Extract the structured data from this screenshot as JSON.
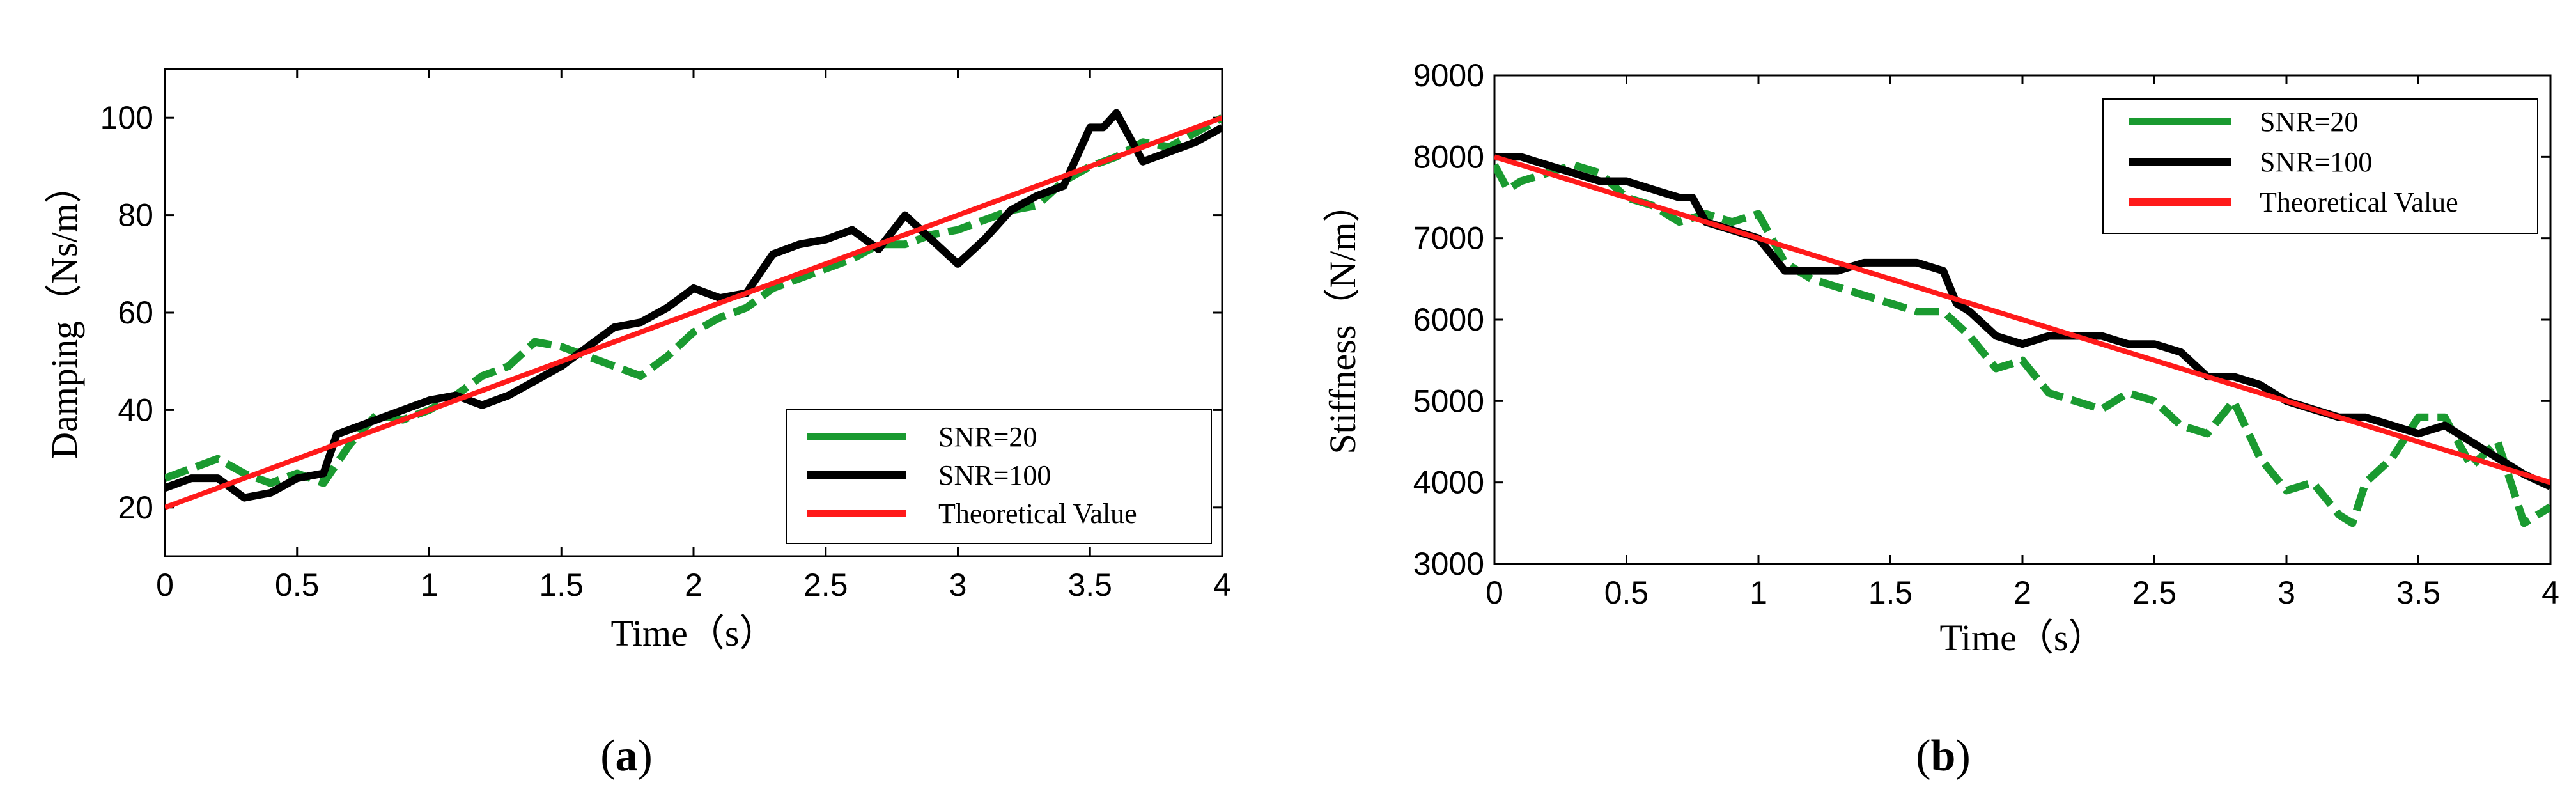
{
  "chart_data": [
    {
      "type": "line",
      "panel_label": "a",
      "title": "",
      "xlabel": "Time（s）",
      "ylabel": "Damping（Ns/m）",
      "xlim": [
        0,
        4
      ],
      "ylim": [
        10,
        110
      ],
      "xticks": [
        0,
        0.5,
        1,
        1.5,
        2,
        2.5,
        3,
        3.5,
        4
      ],
      "xtick_labels": [
        "0",
        "0.5",
        "1",
        "1.5",
        "2",
        "2.5",
        "3",
        "3.5",
        "4"
      ],
      "yticks": [
        20,
        40,
        60,
        80,
        100
      ],
      "ytick_labels": [
        "20",
        "40",
        "60",
        "80",
        "100"
      ],
      "grid": false,
      "legend_position": "bottom-right",
      "series": [
        {
          "name": "SNR=20",
          "color": "#1a9a30",
          "style": "dashed",
          "x": [
            0,
            0.1,
            0.2,
            0.3,
            0.4,
            0.5,
            0.6,
            0.7,
            0.8,
            0.9,
            1.0,
            1.1,
            1.2,
            1.3,
            1.4,
            1.5,
            1.6,
            1.7,
            1.8,
            1.9,
            2.0,
            2.1,
            2.2,
            2.3,
            2.4,
            2.5,
            2.6,
            2.7,
            2.8,
            2.9,
            3.0,
            3.1,
            3.2,
            3.3,
            3.4,
            3.5,
            3.6,
            3.7,
            3.8,
            3.9,
            4.0
          ],
          "y": [
            26,
            28,
            30,
            27,
            25,
            27,
            25,
            33,
            39,
            38,
            40,
            43,
            47,
            49,
            54,
            53,
            51,
            49,
            47,
            51,
            56,
            59,
            61,
            65,
            67,
            69,
            71,
            74,
            74,
            76,
            77,
            79,
            81,
            82,
            87,
            90,
            92,
            95,
            94,
            97,
            100
          ]
        },
        {
          "name": "SNR=100",
          "color": "#000000",
          "style": "solid",
          "x": [
            0,
            0.1,
            0.2,
            0.3,
            0.4,
            0.5,
            0.6,
            0.65,
            0.7,
            0.8,
            0.9,
            1.0,
            1.1,
            1.2,
            1.3,
            1.4,
            1.5,
            1.6,
            1.7,
            1.8,
            1.9,
            2.0,
            2.1,
            2.2,
            2.3,
            2.4,
            2.5,
            2.6,
            2.7,
            2.8,
            2.9,
            3.0,
            3.1,
            3.2,
            3.3,
            3.4,
            3.5,
            3.55,
            3.6,
            3.65,
            3.7,
            3.8,
            3.9,
            4.0
          ],
          "y": [
            24,
            26,
            26,
            22,
            23,
            26,
            27,
            35,
            36,
            38,
            40,
            42,
            43,
            41,
            43,
            46,
            49,
            53,
            57,
            58,
            61,
            65,
            63,
            64,
            72,
            74,
            75,
            77,
            73,
            80,
            75,
            70,
            75,
            81,
            84,
            86,
            98,
            98,
            101,
            96,
            91,
            93,
            95,
            98
          ]
        },
        {
          "name": "Theoretical Value",
          "color": "#ff1a1a",
          "style": "solid",
          "x": [
            0,
            4
          ],
          "y": [
            20,
            100
          ]
        }
      ]
    },
    {
      "type": "line",
      "panel_label": "b",
      "title": "",
      "xlabel": "Time（s）",
      "ylabel": "Stiffness（N/m）",
      "xlim": [
        0,
        4
      ],
      "ylim": [
        3000,
        9000
      ],
      "xticks": [
        0,
        0.5,
        1,
        1.5,
        2,
        2.5,
        3,
        3.5,
        4
      ],
      "xtick_labels": [
        "0",
        "0.5",
        "1",
        "1.5",
        "2",
        "2.5",
        "3",
        "3.5",
        "4"
      ],
      "yticks": [
        3000,
        4000,
        5000,
        6000,
        7000,
        8000,
        9000
      ],
      "ytick_labels": [
        "3000",
        "4000",
        "5000",
        "6000",
        "7000",
        "8000",
        "9000"
      ],
      "grid": false,
      "legend_position": "top-right",
      "series": [
        {
          "name": "SNR=20",
          "color": "#1a9a30",
          "style": "dashed",
          "x": [
            0,
            0.05,
            0.1,
            0.2,
            0.3,
            0.4,
            0.5,
            0.6,
            0.7,
            0.8,
            0.9,
            1.0,
            1.1,
            1.2,
            1.3,
            1.4,
            1.5,
            1.6,
            1.7,
            1.8,
            1.9,
            2.0,
            2.1,
            2.2,
            2.3,
            2.4,
            2.5,
            2.6,
            2.7,
            2.8,
            2.9,
            3.0,
            3.1,
            3.2,
            3.25,
            3.3,
            3.4,
            3.5,
            3.6,
            3.7,
            3.8,
            3.9,
            4.0
          ],
          "y": [
            7900,
            7600,
            7700,
            7800,
            7900,
            7800,
            7500,
            7400,
            7200,
            7300,
            7200,
            7300,
            6700,
            6500,
            6400,
            6300,
            6200,
            6100,
            6100,
            5800,
            5400,
            5500,
            5100,
            5000,
            4900,
            5100,
            5000,
            4700,
            4600,
            5000,
            4300,
            3900,
            4000,
            3600,
            3500,
            4000,
            4300,
            4800,
            4800,
            4200,
            4500,
            3500,
            3700
          ]
        },
        {
          "name": "SNR=100",
          "color": "#000000",
          "style": "solid",
          "x": [
            0,
            0.1,
            0.2,
            0.3,
            0.4,
            0.5,
            0.6,
            0.7,
            0.75,
            0.8,
            0.9,
            1.0,
            1.1,
            1.2,
            1.3,
            1.4,
            1.5,
            1.6,
            1.7,
            1.75,
            1.8,
            1.9,
            2.0,
            2.1,
            2.2,
            2.3,
            2.4,
            2.5,
            2.6,
            2.7,
            2.8,
            2.9,
            3.0,
            3.1,
            3.2,
            3.3,
            3.4,
            3.5,
            3.6,
            3.7,
            3.8,
            3.9,
            4.0
          ],
          "y": [
            8000,
            8000,
            7900,
            7800,
            7700,
            7700,
            7600,
            7500,
            7500,
            7200,
            7100,
            7000,
            6600,
            6600,
            6600,
            6700,
            6700,
            6700,
            6600,
            6200,
            6100,
            5800,
            5700,
            5800,
            5800,
            5800,
            5700,
            5700,
            5600,
            5300,
            5300,
            5200,
            5000,
            4900,
            4800,
            4800,
            4700,
            4600,
            4700,
            4500,
            4300,
            4100,
            3950
          ]
        },
        {
          "name": "Theoretical Value",
          "color": "#ff1a1a",
          "style": "solid",
          "x": [
            0,
            4
          ],
          "y": [
            8000,
            4000
          ]
        }
      ]
    }
  ]
}
